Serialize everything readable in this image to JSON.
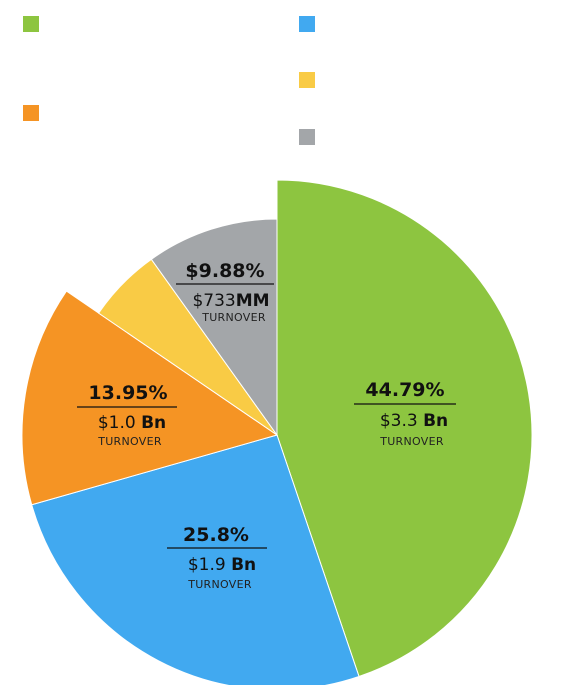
{
  "chart_data": {
    "type": "pie",
    "title": "",
    "legend": "top",
    "caption": "TURNOVER",
    "slices": [
      {
        "name": "",
        "percent": 44.79,
        "amount": "$3.3",
        "unit": "Bn",
        "color": "#8dc540",
        "exploded": true
      },
      {
        "name": "",
        "percent": 25.8,
        "amount": "$1.9",
        "unit": "Bn",
        "color": "#41a9f0",
        "exploded": true
      },
      {
        "name": "",
        "percent": 13.95,
        "amount": "$1.0",
        "unit": "Bn",
        "color": "#f59424",
        "exploded": true
      },
      {
        "name": "",
        "percent": 5.58,
        "amount": "",
        "unit": "",
        "color": "#f9cb45",
        "exploded": false
      },
      {
        "name": "",
        "percent": 9.88,
        "amount": "$733",
        "unit": "MM",
        "color": "#a3a6a9",
        "exploded": false
      }
    ],
    "labels": [
      {
        "pct": "44.79%",
        "amount": "$3.3",
        "unit": "Bn",
        "caption": "TURNOVER"
      },
      {
        "pct": "25.8%",
        "amount": "$1.9",
        "unit": "Bn",
        "caption": "TURNOVER"
      },
      {
        "pct": "13.95%",
        "amount": "$1.0",
        "unit": "Bn",
        "caption": "TURNOVER"
      },
      {
        "pct": "$9.88%",
        "amount": "$733",
        "unit": "MM",
        "caption": "TURNOVER"
      }
    ]
  }
}
